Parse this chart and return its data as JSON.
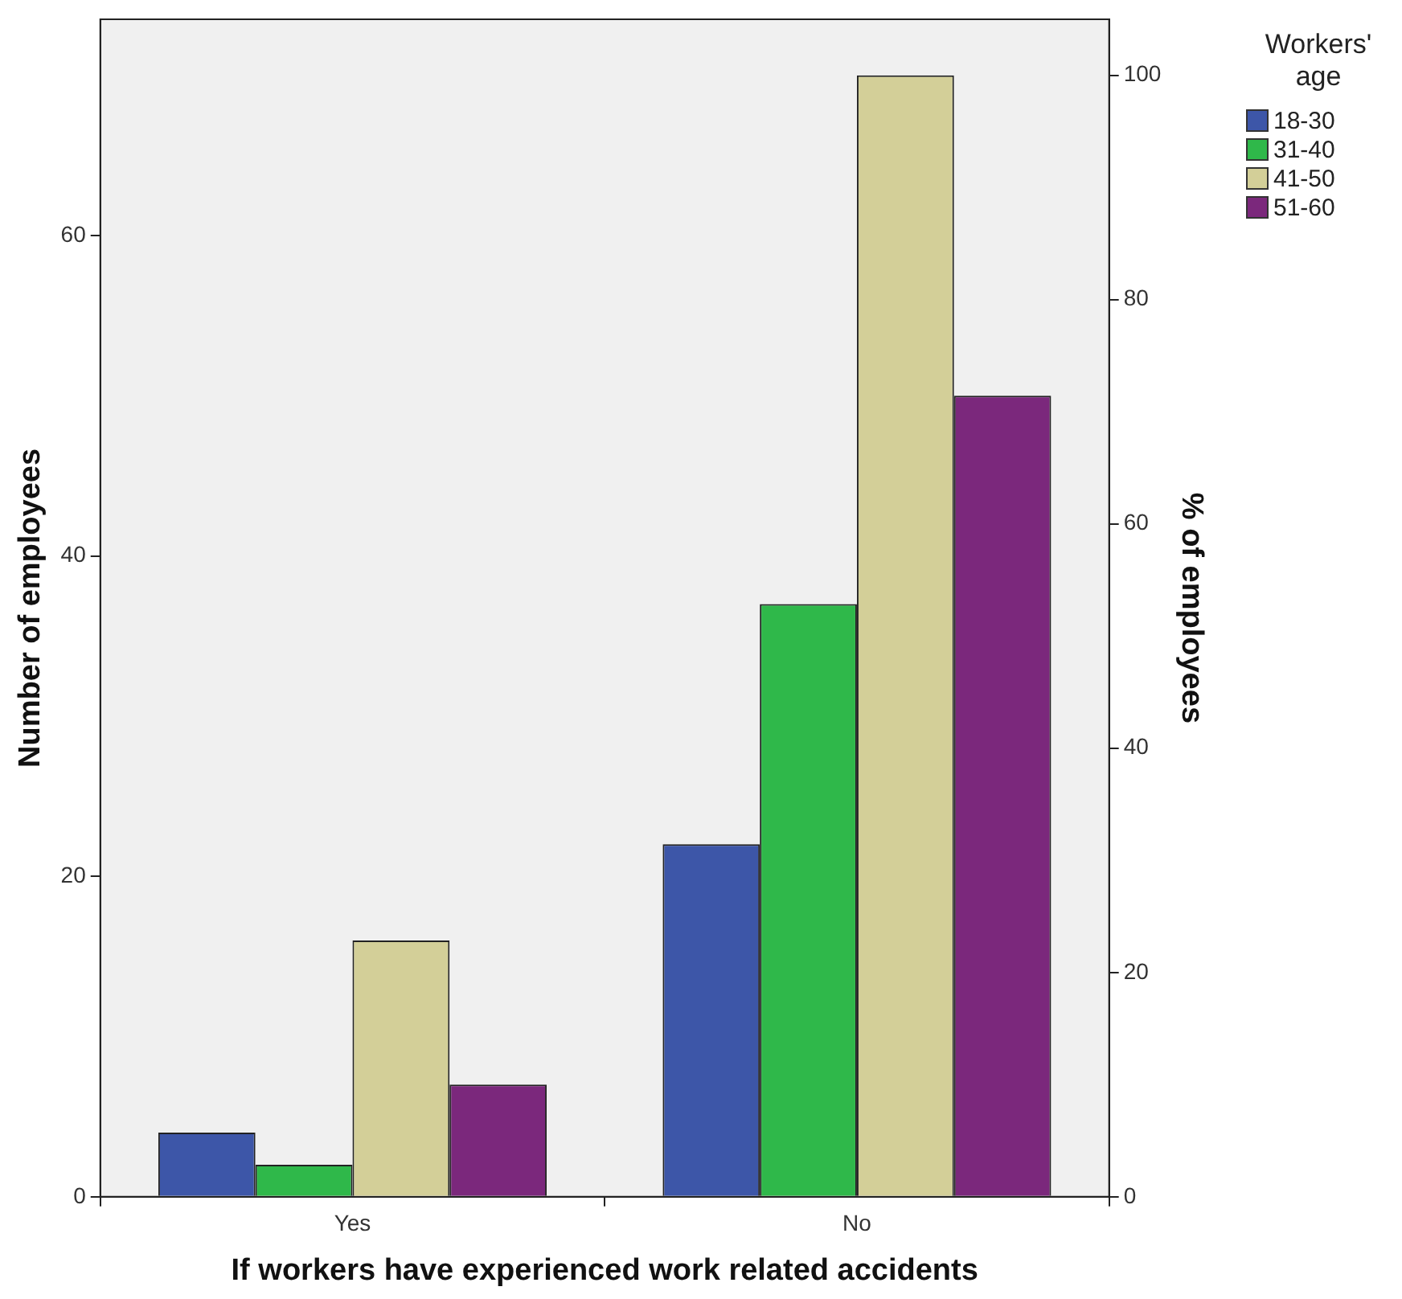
{
  "chart_data": {
    "type": "bar",
    "xlabel": "If workers have experienced work related accidents",
    "ylabel": "Number of employees",
    "y2label": "% of employees",
    "legend_title": "Workers' age",
    "legend": "right",
    "categories": [
      "Yes",
      "No"
    ],
    "series": [
      {
        "name": "18-30",
        "color": "#3d56a8",
        "values": [
          4,
          22
        ]
      },
      {
        "name": "31-40",
        "color": "#2fb84a",
        "values": [
          2,
          37
        ]
      },
      {
        "name": "41-50",
        "color": "#d3cf98",
        "values": [
          16,
          70
        ]
      },
      {
        "name": "51-60",
        "color": "#7b287c",
        "values": [
          7,
          50
        ]
      }
    ],
    "ylim": [
      0,
      73.5
    ],
    "yticks": [
      0,
      20,
      40,
      60
    ],
    "y2lim": [
      0,
      105
    ],
    "y2ticks": [
      0,
      20,
      40,
      60,
      80,
      100
    ]
  }
}
